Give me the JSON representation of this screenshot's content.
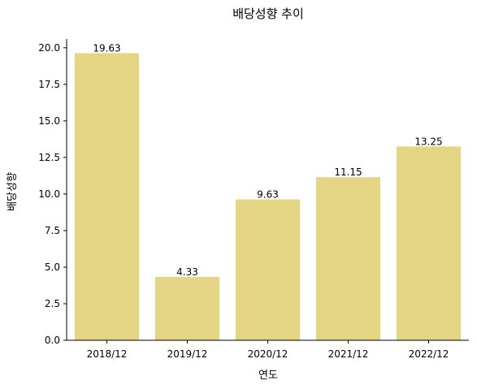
{
  "chart_data": {
    "type": "bar",
    "title": "배당성향 추이",
    "xlabel": "연도",
    "ylabel": "배당성향",
    "categories": [
      "2018/12",
      "2019/12",
      "2020/12",
      "2021/12",
      "2022/12"
    ],
    "values": [
      19.63,
      4.33,
      9.63,
      11.15,
      13.25
    ],
    "value_labels": [
      "19.63",
      "4.33",
      "9.63",
      "11.15",
      "13.25"
    ],
    "ylim": [
      0,
      20.6
    ],
    "yticks": [
      0,
      2.5,
      5,
      7.5,
      10,
      12.5,
      15,
      17.5,
      20
    ],
    "ytick_labels": [
      "0.0",
      "2.5",
      "5.0",
      "7.5",
      "10.0",
      "12.5",
      "15.0",
      "17.5",
      "20.0"
    ],
    "grid": false,
    "bar_color": "#e3d584"
  }
}
